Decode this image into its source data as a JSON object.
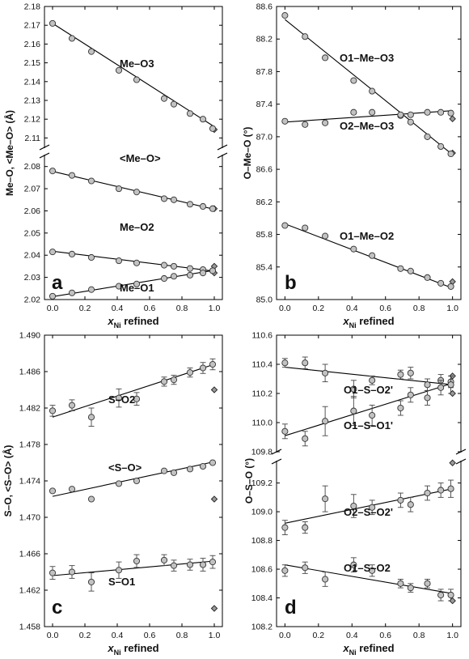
{
  "chart_data": [
    {
      "type": "scatter",
      "panel_label": "a",
      "xlabel": "x",
      "xlabel_sub": "Ni",
      "xlabel_rest": " refined",
      "ylabel": "Me–O, <Me–O> (Å)",
      "xlim": [
        -0.05,
        1.05
      ],
      "ylim_upper": [
        2.105,
        2.18
      ],
      "ylim_lower": [
        2.02,
        2.085
      ],
      "y_break": true,
      "x_ticks": [
        "0.0",
        "0.2",
        "0.4",
        "0.6",
        "0.8",
        "1.0"
      ],
      "y_ticks_upper": [
        "2.11",
        "2.12",
        "2.13",
        "2.14",
        "2.15",
        "2.16",
        "2.17",
        "2.18"
      ],
      "y_ticks_lower": [
        "2.02",
        "2.03",
        "2.04",
        "2.05",
        "2.06",
        "2.07",
        "2.08"
      ],
      "series": [
        {
          "name": "Me–O3",
          "segment": "upper",
          "x": [
            0.0,
            0.12,
            0.24,
            0.41,
            0.52,
            0.69,
            0.75,
            0.85,
            0.93,
            0.99
          ],
          "y": [
            2.171,
            2.163,
            2.156,
            2.146,
            2.141,
            2.131,
            2.128,
            2.123,
            2.12,
            2.115
          ],
          "fit": [
            [
              0.0,
              2.171
            ],
            [
              1.0,
              2.116
            ]
          ],
          "reference": [
            1.0,
            2.1145
          ]
        },
        {
          "name": "<Me–O>",
          "segment": "lower",
          "x": [
            0.0,
            0.12,
            0.24,
            0.41,
            0.52,
            0.69,
            0.75,
            0.85,
            0.93,
            0.99
          ],
          "y": [
            2.078,
            2.076,
            2.0735,
            2.07,
            2.0685,
            2.0655,
            2.065,
            2.063,
            2.062,
            2.061
          ],
          "fit": [
            [
              0.0,
              2.0778
            ],
            [
              1.0,
              2.0607
            ]
          ],
          "reference": [
            1.0,
            2.061
          ]
        },
        {
          "name": "Me–O2",
          "segment": "lower",
          "x": [
            0.0,
            0.12,
            0.24,
            0.41,
            0.52,
            0.69,
            0.75,
            0.85,
            0.93,
            0.99
          ],
          "y": [
            2.0415,
            2.0405,
            2.039,
            2.0375,
            2.0365,
            2.0355,
            2.035,
            2.034,
            2.0335,
            2.033
          ],
          "fit": [
            [
              0.0,
              2.0418
            ],
            [
              1.0,
              2.0328
            ]
          ],
          "reference": [
            1.0,
            2.035
          ]
        },
        {
          "name": "Me–O1",
          "segment": "lower",
          "x": [
            0.0,
            0.12,
            0.24,
            0.41,
            0.52,
            0.69,
            0.75,
            0.85,
            0.93,
            0.99
          ],
          "y": [
            2.0215,
            2.023,
            2.0245,
            2.026,
            2.027,
            2.0295,
            2.0305,
            2.031,
            2.032,
            2.033
          ],
          "fit": [
            [
              0.0,
              2.0213
            ],
            [
              1.0,
              2.0332
            ]
          ],
          "reference": [
            1.0,
            2.032
          ]
        }
      ]
    },
    {
      "type": "scatter",
      "panel_label": "b",
      "xlabel": "x",
      "xlabel_sub": "Ni",
      "xlabel_rest": " refined",
      "ylabel": "O–Me–O (°)",
      "xlim": [
        -0.05,
        1.05
      ],
      "ylim": [
        85.0,
        88.6
      ],
      "x_ticks": [
        "0.0",
        "0.2",
        "0.4",
        "0.6",
        "0.8",
        "1.0"
      ],
      "y_ticks": [
        "85.0",
        "85.4",
        "85.8",
        "86.2",
        "86.6",
        "87.0",
        "87.4",
        "87.8",
        "88.2",
        "88.6"
      ],
      "series": [
        {
          "name": "O1–Me–O3",
          "x": [
            0.0,
            0.12,
            0.24,
            0.41,
            0.52,
            0.69,
            0.75,
            0.85,
            0.93,
            0.99
          ],
          "y": [
            88.49,
            88.23,
            87.97,
            87.69,
            87.56,
            87.26,
            87.18,
            87.0,
            86.88,
            86.79
          ],
          "fit": [
            [
              0.0,
              88.44
            ],
            [
              1.0,
              86.78
            ]
          ],
          "reference": [
            1.0,
            86.8
          ]
        },
        {
          "name": "O2–Me–O3",
          "x": [
            0.0,
            0.12,
            0.24,
            0.41,
            0.52,
            0.69,
            0.75,
            0.85,
            0.93,
            0.99
          ],
          "y": [
            87.19,
            87.15,
            87.17,
            87.3,
            87.3,
            87.27,
            87.27,
            87.3,
            87.3,
            87.29
          ],
          "fit": [
            [
              0.0,
              87.18
            ],
            [
              1.0,
              87.32
            ]
          ],
          "reference": [
            1.0,
            87.22
          ]
        },
        {
          "name": "O1–Me–O2",
          "x": [
            0.0,
            0.12,
            0.24,
            0.41,
            0.52,
            0.69,
            0.75,
            0.85,
            0.93,
            0.99
          ],
          "y": [
            85.91,
            85.88,
            85.78,
            85.62,
            85.54,
            85.38,
            85.35,
            85.27,
            85.2,
            85.16
          ],
          "fit": [
            [
              0.0,
              85.93
            ],
            [
              1.0,
              85.14
            ]
          ],
          "reference": [
            1.0,
            85.22
          ]
        }
      ]
    },
    {
      "type": "scatter",
      "panel_label": "c",
      "xlabel": "x",
      "xlabel_sub": "Ni",
      "xlabel_rest": " refined",
      "ylabel": "S–O, <S–O> (Å)",
      "xlim": [
        -0.05,
        1.05
      ],
      "ylim": [
        1.458,
        1.49
      ],
      "x_ticks": [
        "0.0",
        "0.2",
        "0.4",
        "0.6",
        "0.8",
        "1.0"
      ],
      "y_ticks": [
        "1.458",
        "1.462",
        "1.466",
        "1.470",
        "1.474",
        "1.478",
        "1.482",
        "1.486",
        "1.490"
      ],
      "series": [
        {
          "name": "S–O2",
          "x": [
            0.0,
            0.12,
            0.24,
            0.41,
            0.52,
            0.69,
            0.75,
            0.85,
            0.93,
            0.99
          ],
          "y": [
            1.4817,
            1.4823,
            1.481,
            1.4831,
            1.483,
            1.4849,
            1.4851,
            1.4859,
            1.4864,
            1.4868
          ],
          "err": [
            0.0006,
            0.0006,
            0.001,
            0.001,
            0.0007,
            0.0005,
            0.0005,
            0.0005,
            0.0006,
            0.0006
          ],
          "fit": [
            [
              0.0,
              1.481
            ],
            [
              1.0,
              1.4868
            ]
          ],
          "reference": [
            1.0,
            1.484
          ]
        },
        {
          "name": "<S–O>",
          "x": [
            0.0,
            0.12,
            0.24,
            0.41,
            0.52,
            0.69,
            0.75,
            0.85,
            0.93,
            0.99
          ],
          "y": [
            1.4729,
            1.4731,
            1.472,
            1.4737,
            1.474,
            1.4751,
            1.4749,
            1.4753,
            1.4756,
            1.476
          ],
          "fit": [
            [
              0.0,
              1.4723
            ],
            [
              1.0,
              1.4761
            ]
          ],
          "reference": [
            1.0,
            1.472
          ]
        },
        {
          "name": "S–O1",
          "x": [
            0.0,
            0.12,
            0.24,
            0.41,
            0.52,
            0.69,
            0.75,
            0.85,
            0.93,
            0.99
          ],
          "y": [
            1.4639,
            1.464,
            1.4629,
            1.4642,
            1.4652,
            1.4653,
            1.4647,
            1.4648,
            1.4648,
            1.4651
          ],
          "err": [
            0.0007,
            0.0007,
            0.001,
            0.0009,
            0.0007,
            0.0006,
            0.0006,
            0.0006,
            0.0007,
            0.0007
          ],
          "fit": [
            [
              0.0,
              1.4636
            ],
            [
              1.0,
              1.4652
            ]
          ],
          "reference": [
            1.0,
            1.46
          ]
        }
      ]
    },
    {
      "type": "scatter",
      "panel_label": "d",
      "xlabel": "x",
      "xlabel_sub": "Ni",
      "xlabel_rest": " refined",
      "ylabel": "O–S–O (°)",
      "xlim": [
        -0.05,
        1.05
      ],
      "ylim_upper": [
        109.8,
        110.6
      ],
      "ylim_lower": [
        108.2,
        109.35
      ],
      "y_break": true,
      "x_ticks": [
        "0.0",
        "0.2",
        "0.4",
        "0.6",
        "0.8",
        "1.0"
      ],
      "y_ticks_upper": [
        "109.8",
        "110.0",
        "110.2",
        "110.4",
        "110.6"
      ],
      "y_ticks_lower": [
        "108.2",
        "108.4",
        "108.6",
        "108.8",
        "109.0",
        "109.2"
      ],
      "series": [
        {
          "name": "O1–S–O2'",
          "segment": "upper",
          "x": [
            0.0,
            0.12,
            0.24,
            0.41,
            0.52,
            0.69,
            0.75,
            0.85,
            0.93,
            0.99
          ],
          "y": [
            110.41,
            110.41,
            110.34,
            110.23,
            110.29,
            110.33,
            110.34,
            110.26,
            110.29,
            110.28
          ],
          "err": [
            0.03,
            0.04,
            0.06,
            0.06,
            0.03,
            0.03,
            0.04,
            0.04,
            0.04,
            0.04
          ],
          "fit": [
            [
              0.0,
              110.38
            ],
            [
              1.0,
              110.26
            ]
          ],
          "reference": [
            1.0,
            110.32
          ]
        },
        {
          "name": "O1–S–O1'",
          "segment": "upper",
          "x": [
            0.0,
            0.12,
            0.24,
            0.41,
            0.52,
            0.69,
            0.75,
            0.85,
            0.93,
            0.99
          ],
          "y": [
            109.94,
            109.89,
            110.01,
            110.08,
            110.05,
            110.1,
            110.19,
            110.17,
            110.24,
            110.26
          ],
          "err": [
            0.05,
            0.05,
            0.1,
            0.1,
            0.07,
            0.05,
            0.05,
            0.05,
            0.05,
            0.06
          ],
          "fit": [
            [
              0.0,
              109.91
            ],
            [
              1.0,
              110.27
            ]
          ],
          "reference": [
            1.0,
            110.2
          ]
        },
        {
          "name": "O2–S–O2'",
          "segment": "lower",
          "x": [
            0.0,
            0.12,
            0.24,
            0.41,
            0.52,
            0.69,
            0.75,
            0.85,
            0.93,
            0.99
          ],
          "y": [
            108.89,
            108.89,
            109.09,
            109.04,
            109.03,
            109.08,
            109.05,
            109.13,
            109.15,
            109.16
          ],
          "err": [
            0.05,
            0.04,
            0.09,
            0.08,
            0.05,
            0.05,
            0.05,
            0.05,
            0.05,
            0.06
          ],
          "fit": [
            [
              0.0,
              108.92
            ],
            [
              1.0,
              109.16
            ]
          ],
          "reference": [
            1.0,
            109.34
          ]
        },
        {
          "name": "O1–S–O2",
          "segment": "lower",
          "x": [
            0.0,
            0.12,
            0.24,
            0.41,
            0.52,
            0.69,
            0.75,
            0.85,
            0.93,
            0.99
          ],
          "y": [
            108.59,
            108.61,
            108.53,
            108.63,
            108.59,
            108.5,
            108.47,
            108.5,
            108.42,
            108.42
          ],
          "err": [
            0.04,
            0.04,
            0.05,
            0.05,
            0.04,
            0.03,
            0.03,
            0.03,
            0.04,
            0.04
          ],
          "fit": [
            [
              0.0,
              108.63
            ],
            [
              1.0,
              108.43
            ]
          ],
          "reference": [
            1.0,
            108.38
          ]
        }
      ]
    }
  ]
}
